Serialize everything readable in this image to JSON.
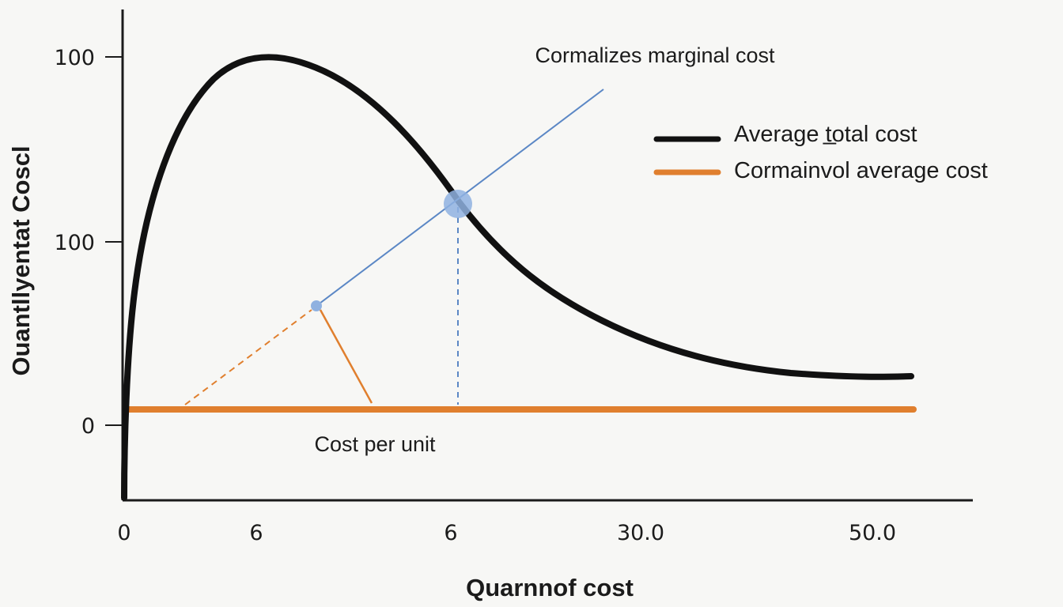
{
  "chart_data": {
    "type": "line",
    "title": "Cormalizes marginal cost",
    "xlabel": "Quarnnof cost",
    "ylabel": "Ouantllyentat  Coscl",
    "x_tick_labels": [
      "0",
      "6",
      "6",
      "30.0",
      "50.0"
    ],
    "y_tick_labels": [
      "100",
      "100",
      "0"
    ],
    "grid": false,
    "legend_position": "right",
    "annotation": "Cost per unit",
    "colors": {
      "average_total_cost": "#111111",
      "average_cost": "#e07f2e",
      "marginal_cost": "#5b87c5",
      "point": "#8fb1e0"
    },
    "series": [
      {
        "name": "Average t̲otal cost",
        "style": "thick-black-curve"
      },
      {
        "name": "Cormainvol average cost",
        "style": "orange-horizontal-line"
      }
    ]
  }
}
